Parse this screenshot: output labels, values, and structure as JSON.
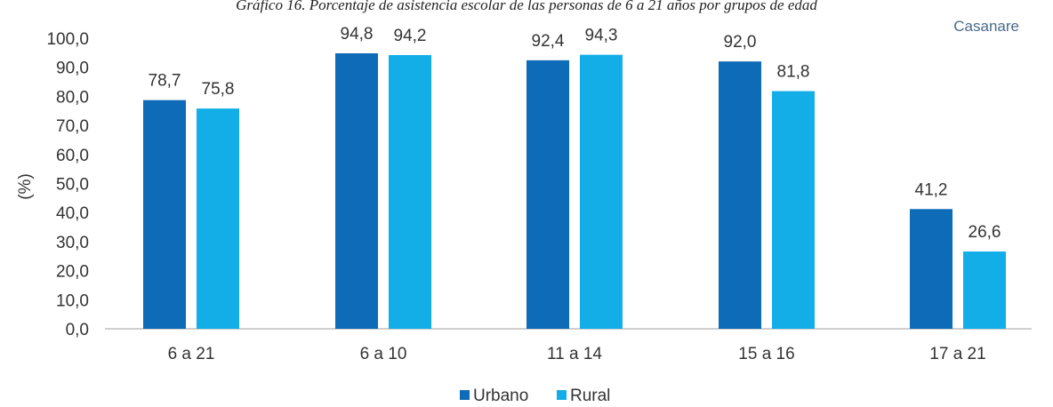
{
  "title": "Gráfico 16. Porcentaje de asistencia escolar de las personas de 6 a 21 años por grupos de edad",
  "region": "Casanare",
  "colors": {
    "urbano": "#0e6bb8",
    "rural": "#13aee8",
    "axis": "#bfbfbf",
    "text": "#333333"
  },
  "chart_data": {
    "type": "bar",
    "categories": [
      "6 a 21",
      "6 a 10",
      "11 a 14",
      "15 a 16",
      "17 a 21"
    ],
    "series": [
      {
        "name": "Urbano",
        "values": [
          78.7,
          94.8,
          92.4,
          92.0,
          41.2
        ],
        "labels": [
          "78,7",
          "94,8",
          "92,4",
          "92,0",
          "41,2"
        ]
      },
      {
        "name": "Rural",
        "values": [
          75.8,
          94.2,
          94.3,
          81.8,
          26.6
        ],
        "labels": [
          "75,8",
          "94,2",
          "94,3",
          "81,8",
          "26,6"
        ]
      }
    ],
    "ylabel": "(%)",
    "ylim": [
      0,
      100
    ],
    "yticks": [
      0,
      10,
      20,
      30,
      40,
      50,
      60,
      70,
      80,
      90,
      100
    ],
    "ytick_labels": [
      "0,0",
      "10,0",
      "20,0",
      "30,0",
      "40,0",
      "50,0",
      "60,0",
      "70,0",
      "80,0",
      "90,0",
      "100,0"
    ],
    "grid": false,
    "legend_position": "bottom-center"
  }
}
